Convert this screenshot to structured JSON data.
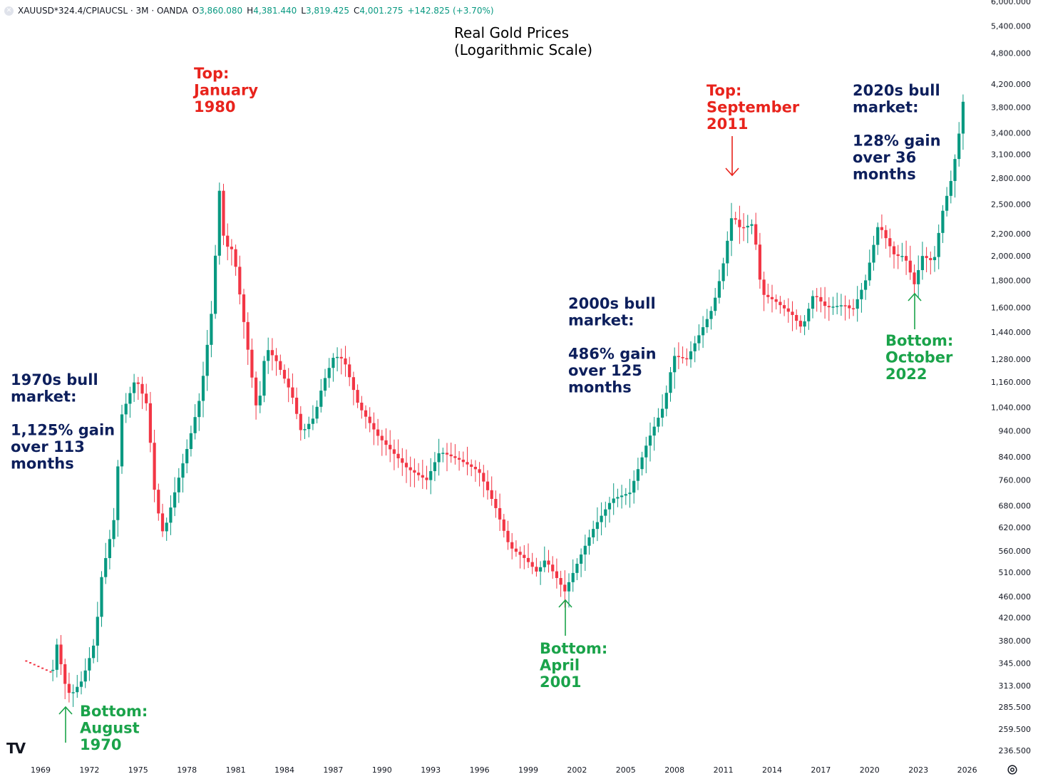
{
  "legend": {
    "symbol": "XAUUSD*324.4/CPIAUCSL · 3M · OANDA",
    "o_label": "O",
    "o_value": "3,860.080",
    "h_label": "H",
    "h_value": "4,381.440",
    "l_label": "L",
    "l_value": "3,819.425",
    "c_label": "C",
    "c_value": "4,001.275",
    "change": "+142.825 (+3.70%)"
  },
  "icons": {
    "logo": "tradingview-logo-icon",
    "logo_text": "TV",
    "settings": "gear-icon",
    "symbol_dot": "close-icon"
  },
  "colors": {
    "up": "#089981",
    "down": "#f23645",
    "annotation_dark": "#0d1f5c",
    "annotation_red": "#e8231c",
    "annotation_green": "#1aa34a"
  },
  "chart_data": {
    "type": "candlestick",
    "title": "Real Gold Prices\n(Logarithmic Scale)",
    "scale": "log",
    "x_axis": {
      "ticks": [
        "1969",
        "1972",
        "1975",
        "1978",
        "1981",
        "1984",
        "1987",
        "1990",
        "1993",
        "1996",
        "1999",
        "2002",
        "2005",
        "2008",
        "2011",
        "2014",
        "2017",
        "2020",
        "2023",
        "2026"
      ],
      "range": [
        1968.1,
        2027.6
      ]
    },
    "y_axis": {
      "ticks": [
        6000,
        5400,
        4800,
        4200,
        3800,
        3400,
        3100,
        2800,
        2500,
        2200,
        2000,
        1800,
        1600,
        1440,
        1280,
        1160,
        1040,
        940,
        840,
        760,
        680,
        620,
        560,
        510,
        460,
        420,
        380,
        345,
        313,
        285.5,
        259.5,
        236.5
      ],
      "tick_labels": [
        "6,000.000",
        "5,400.000",
        "4,800.000",
        "4,200.000",
        "3,800.000",
        "3,400.000",
        "3,100.000",
        "2,800.000",
        "2,500.000",
        "2,200.000",
        "2,000.000",
        "1,800.000",
        "1,600.000",
        "1,440.000",
        "1,280.000",
        "1,160.000",
        "1,040.000",
        "940.000",
        "840.000",
        "760.000",
        "680.000",
        "620.000",
        "560.000",
        "510.000",
        "460.000",
        "420.000",
        "380.000",
        "345.000",
        "313.000",
        "285.500",
        "259.500",
        "236.500"
      ],
      "range": [
        230,
        6200
      ]
    },
    "pre_series": {
      "x": [
        1968.1,
        1969.8
      ],
      "y": [
        348,
        330
      ]
    },
    "anchors": [
      [
        1969.8,
        335
      ],
      [
        1970.0,
        380
      ],
      [
        1970.6,
        310
      ],
      [
        1970.9,
        300
      ],
      [
        1971.6,
        320
      ],
      [
        1972.4,
        380
      ],
      [
        1972.8,
        500
      ],
      [
        1973.6,
        650
      ],
      [
        1974.0,
        1000
      ],
      [
        1974.9,
        1180
      ],
      [
        1975.6,
        1050
      ],
      [
        1976.1,
        700
      ],
      [
        1976.6,
        600
      ],
      [
        1977.4,
        740
      ],
      [
        1978.1,
        880
      ],
      [
        1978.9,
        1100
      ],
      [
        1979.6,
        1600
      ],
      [
        1980.05,
        2650
      ],
      [
        1980.35,
        2100
      ],
      [
        1980.9,
        2050
      ],
      [
        1981.7,
        1400
      ],
      [
        1982.4,
        1000
      ],
      [
        1982.9,
        1350
      ],
      [
        1983.5,
        1280
      ],
      [
        1984.5,
        1100
      ],
      [
        1985.1,
        930
      ],
      [
        1985.9,
        1000
      ],
      [
        1986.4,
        1150
      ],
      [
        1987.1,
        1300
      ],
      [
        1987.7,
        1280
      ],
      [
        1988.6,
        1050
      ],
      [
        1989.8,
        920
      ],
      [
        1991.6,
        800
      ],
      [
        1992.8,
        760
      ],
      [
        1993.6,
        860
      ],
      [
        1994.8,
        830
      ],
      [
        1996.0,
        790
      ],
      [
        1997.0,
        680
      ],
      [
        1997.9,
        570
      ],
      [
        1998.9,
        540
      ],
      [
        1999.6,
        510
      ],
      [
        2000.1,
        540
      ],
      [
        2001.3,
        470
      ],
      [
        2002.4,
        560
      ],
      [
        2003.1,
        620
      ],
      [
        2004.2,
        700
      ],
      [
        2005.3,
        720
      ],
      [
        2006.4,
        900
      ],
      [
        2007.4,
        1050
      ],
      [
        2008.0,
        1300
      ],
      [
        2008.8,
        1280
      ],
      [
        2009.7,
        1450
      ],
      [
        2010.4,
        1600
      ],
      [
        2011.0,
        1900
      ],
      [
        2011.6,
        2400
      ],
      [
        2012.1,
        2250
      ],
      [
        2012.9,
        2300
      ],
      [
        2013.4,
        1700
      ],
      [
        2014.2,
        1650
      ],
      [
        2015.3,
        1550
      ],
      [
        2015.9,
        1460
      ],
      [
        2016.6,
        1700
      ],
      [
        2017.4,
        1600
      ],
      [
        2018.5,
        1620
      ],
      [
        2019.0,
        1580
      ],
      [
        2019.8,
        1800
      ],
      [
        2020.6,
        2300
      ],
      [
        2021.6,
        2000
      ],
      [
        2022.2,
        2000
      ],
      [
        2022.8,
        1770
      ],
      [
        2023.3,
        2000
      ],
      [
        2024.0,
        1950
      ],
      [
        2024.5,
        2400
      ],
      [
        2025.1,
        2800
      ],
      [
        2025.5,
        3300
      ],
      [
        2025.85,
        4000
      ]
    ],
    "annotations": [
      {
        "text": "Top:\nJanuary\n1980",
        "color": "red"
      },
      {
        "text": "Top:\nSeptember\n2011",
        "color": "red"
      },
      {
        "text": "Bottom:\nAugust\n1970",
        "color": "green"
      },
      {
        "text": "Bottom:\nApril\n2001",
        "color": "green"
      },
      {
        "text": "Bottom:\nOctober\n2022",
        "color": "green"
      },
      {
        "text": "1970s bull\nmarket:\n\n1,125% gain\nover 113\nmonths",
        "color": "dark"
      },
      {
        "text": "2000s bull\nmarket:\n\n486% gain\nover 125\nmonths",
        "color": "dark"
      },
      {
        "text": "2020s bull\nmarket:\n\n128% gain\nover 36\nmonths",
        "color": "dark"
      }
    ]
  }
}
